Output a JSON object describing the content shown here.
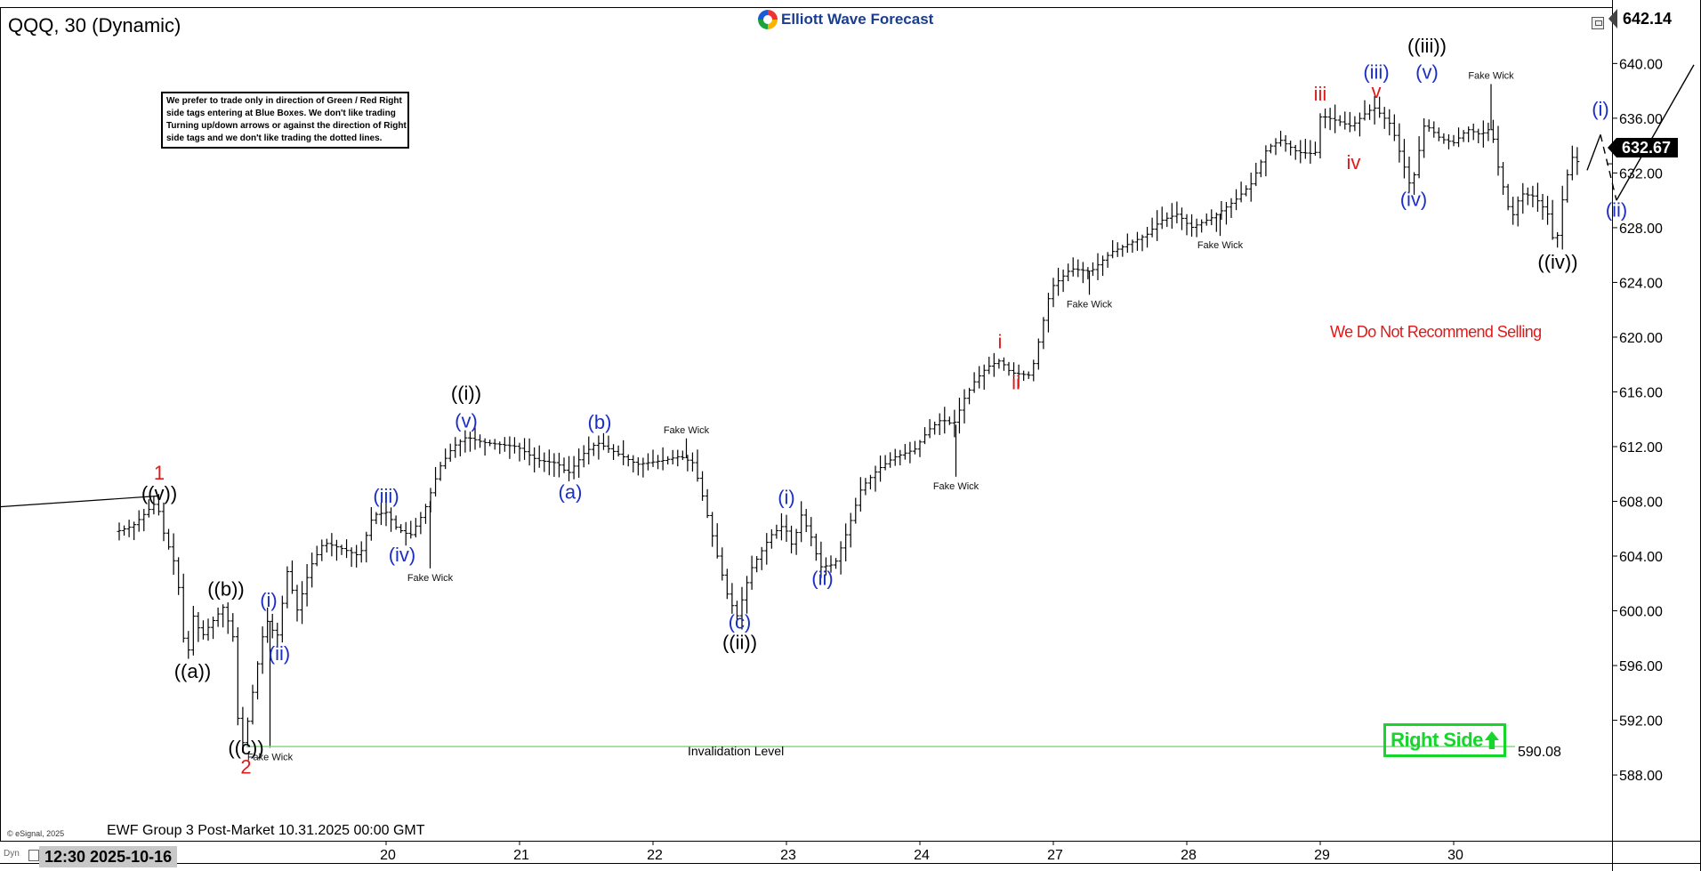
{
  "header": {
    "title": "QQQ, 30 (Dynamic)",
    "logo_text": "Elliott Wave Forecast"
  },
  "note": {
    "lines": [
      "We prefer to trade only in direction of Green / Red Right",
      "side tags entering at Blue Boxes. We don't like trading",
      "Turning up/down arrows or against the direction of Right",
      "side tags and we don't like trading the dotted lines."
    ]
  },
  "footer": {
    "caption": "EWF Group 3 Post-Market 10.31.2025 00:00 GMT",
    "copyright": "© eSignal, 2025",
    "start_label": "12:30 2025-10-16",
    "dyn_label": "Dyn"
  },
  "annotations": {
    "right_side": "Right Side",
    "no_sell": "We Do Not Recommend Selling",
    "invalidation_label": "Invalidation Level",
    "invalidation_value": "590.08"
  },
  "price_boxes": {
    "top": "642.14",
    "last": "632.67"
  },
  "colors": {
    "black_label": "#000000",
    "blue_label": "#1c2fc4",
    "red_label": "#e01a1a",
    "right_side_green": "#16d62b",
    "invalidation_line": "#7de07d"
  },
  "chart_data": {
    "type": "ohlc-bar",
    "ylim": [
      585.6,
      643.6
    ],
    "y_ticks": [
      588,
      592,
      596,
      600,
      604,
      608,
      612,
      616,
      620,
      624,
      628,
      632,
      636,
      640
    ],
    "y_tick_labels": [
      "588.00",
      "592.00",
      "596.00",
      "600.00",
      "604.00",
      "608.00",
      "612.00",
      "616.00",
      "620.00",
      "624.00",
      "628.00",
      "632.00",
      "636.00",
      "640.00"
    ],
    "x_axis_start": "2025-10-16 12:30",
    "x_ticks": [
      {
        "label": "20",
        "t": 2.0
      },
      {
        "label": "21",
        "t": 3.0
      },
      {
        "label": "22",
        "t": 4.0
      },
      {
        "label": "23",
        "t": 5.0
      },
      {
        "label": "24",
        "t": 6.0
      },
      {
        "label": "27",
        "t": 7.0
      },
      {
        "label": "28",
        "t": 8.0
      },
      {
        "label": "29",
        "t": 9.0
      },
      {
        "label": "30",
        "t": 10.0
      }
    ],
    "price_path": [
      [
        0.0,
        605.8
      ],
      [
        0.12,
        606.2
      ],
      [
        0.22,
        607.2
      ],
      [
        0.3,
        608.0
      ],
      [
        0.34,
        606.0
      ],
      [
        0.45,
        603.0
      ],
      [
        0.52,
        596.0
      ],
      [
        0.58,
        600.0
      ],
      [
        0.63,
        598.0
      ],
      [
        0.7,
        599.0
      ],
      [
        0.8,
        600.3
      ],
      [
        0.88,
        597.8
      ],
      [
        0.9,
        592.5
      ],
      [
        0.95,
        590.1
      ],
      [
        1.0,
        593.0
      ],
      [
        1.08,
        597.5
      ],
      [
        1.12,
        599.4
      ],
      [
        1.2,
        598.0
      ],
      [
        1.28,
        603.0
      ],
      [
        1.35,
        600.0
      ],
      [
        1.45,
        603.2
      ],
      [
        1.55,
        605.0
      ],
      [
        1.7,
        604.5
      ],
      [
        1.82,
        604.0
      ],
      [
        1.92,
        607.0
      ],
      [
        2.02,
        607.2
      ],
      [
        2.1,
        606.0
      ],
      [
        2.2,
        605.5
      ],
      [
        2.3,
        607.2
      ],
      [
        2.42,
        610.5
      ],
      [
        2.52,
        612.0
      ],
      [
        2.62,
        612.7
      ],
      [
        2.75,
        612.3
      ],
      [
        3.0,
        612.0
      ],
      [
        3.15,
        611.0
      ],
      [
        3.3,
        610.8
      ],
      [
        3.38,
        610.0
      ],
      [
        3.5,
        611.5
      ],
      [
        3.6,
        612.3
      ],
      [
        3.75,
        611.5
      ],
      [
        3.9,
        610.7
      ],
      [
        4.1,
        611.0
      ],
      [
        4.22,
        611.3
      ],
      [
        4.32,
        610.8
      ],
      [
        4.4,
        608.0
      ],
      [
        4.5,
        604.0
      ],
      [
        4.58,
        601.0
      ],
      [
        4.65,
        599.6
      ],
      [
        4.75,
        603.0
      ],
      [
        4.9,
        605.5
      ],
      [
        5.0,
        606.3
      ],
      [
        5.07,
        604.5
      ],
      [
        5.12,
        607.2
      ],
      [
        5.2,
        605.5
      ],
      [
        5.27,
        603.2
      ],
      [
        5.38,
        603.4
      ],
      [
        5.48,
        606.0
      ],
      [
        5.58,
        609.0
      ],
      [
        5.7,
        610.3
      ],
      [
        5.82,
        611.2
      ],
      [
        5.98,
        611.8
      ],
      [
        6.08,
        613.2
      ],
      [
        6.18,
        614.0
      ],
      [
        6.27,
        613.6
      ],
      [
        6.35,
        615.5
      ],
      [
        6.43,
        616.8
      ],
      [
        6.52,
        617.8
      ],
      [
        6.62,
        618.3
      ],
      [
        6.7,
        617.4
      ],
      [
        6.85,
        617.2
      ],
      [
        7.0,
        623.6
      ],
      [
        7.15,
        625.0
      ],
      [
        7.3,
        624.8
      ],
      [
        7.45,
        626.2
      ],
      [
        7.58,
        626.8
      ],
      [
        7.72,
        627.5
      ],
      [
        7.82,
        628.5
      ],
      [
        7.95,
        629.0
      ],
      [
        8.05,
        628.0
      ],
      [
        8.22,
        628.8
      ],
      [
        8.38,
        630.0
      ],
      [
        8.5,
        631.2
      ],
      [
        8.62,
        633.8
      ],
      [
        8.72,
        634.4
      ],
      [
        8.85,
        633.5
      ],
      [
        8.98,
        633.4
      ],
      [
        9.02,
        636.2
      ],
      [
        9.15,
        635.8
      ],
      [
        9.25,
        635.4
      ],
      [
        9.35,
        636.3
      ],
      [
        9.42,
        636.8
      ],
      [
        9.55,
        635.5
      ],
      [
        9.7,
        630.8
      ],
      [
        9.8,
        635.6
      ],
      [
        9.92,
        634.5
      ],
      [
        10.02,
        634.2
      ],
      [
        10.12,
        635.2
      ],
      [
        10.22,
        634.8
      ],
      [
        10.3,
        635.3
      ],
      [
        10.35,
        632.5
      ],
      [
        10.45,
        628.6
      ],
      [
        10.52,
        630.5
      ],
      [
        10.62,
        630.3
      ],
      [
        10.72,
        629.1
      ],
      [
        10.78,
        626.3
      ],
      [
        10.84,
        630.5
      ],
      [
        10.9,
        633.2
      ],
      [
        10.96,
        632.7
      ]
    ],
    "projection": [
      [
        11.0,
        632.2
      ],
      [
        11.1,
        634.8
      ],
      [
        11.22,
        630.0
      ],
      [
        11.8,
        639.9
      ]
    ],
    "last_price": 632.67,
    "invalidation_level": 590.08,
    "wave_labels": [
      {
        "text": "1",
        "t": 0.3,
        "p": 609.6,
        "color": "red"
      },
      {
        "text": "((v))",
        "t": 0.3,
        "p": 608.1,
        "color": "black"
      },
      {
        "text": "((a))",
        "t": 0.55,
        "p": 595.1,
        "color": "black"
      },
      {
        "text": "((b))",
        "t": 0.8,
        "p": 601.1,
        "color": "black"
      },
      {
        "text": "((c))",
        "t": 0.95,
        "p": 589.5,
        "color": "black"
      },
      {
        "text": "2",
        "t": 0.95,
        "p": 588.1,
        "color": "red"
      },
      {
        "text": "(i)",
        "t": 1.12,
        "p": 600.3,
        "color": "blue"
      },
      {
        "text": "(ii)",
        "t": 1.2,
        "p": 596.4,
        "color": "blue"
      },
      {
        "text": "(iii)",
        "t": 2.0,
        "p": 607.9,
        "color": "blue"
      },
      {
        "text": "(iv)",
        "t": 2.12,
        "p": 603.6,
        "color": "blue"
      },
      {
        "text": "((i))",
        "t": 2.6,
        "p": 615.4,
        "color": "black"
      },
      {
        "text": "(v)",
        "t": 2.6,
        "p": 613.4,
        "color": "blue"
      },
      {
        "text": "(a)",
        "t": 3.38,
        "p": 608.2,
        "color": "blue"
      },
      {
        "text": "(b)",
        "t": 3.6,
        "p": 613.3,
        "color": "blue"
      },
      {
        "text": "(c)",
        "t": 4.65,
        "p": 598.7,
        "color": "blue"
      },
      {
        "text": "((ii))",
        "t": 4.65,
        "p": 597.2,
        "color": "black"
      },
      {
        "text": "(i)",
        "t": 5.0,
        "p": 607.8,
        "color": "blue"
      },
      {
        "text": "(ii)",
        "t": 5.27,
        "p": 601.9,
        "color": "blue"
      },
      {
        "text": "i",
        "t": 6.6,
        "p": 619.2,
        "color": "red"
      },
      {
        "text": "ii",
        "t": 6.72,
        "p": 616.2,
        "color": "red"
      },
      {
        "text": "iii",
        "t": 9.0,
        "p": 637.3,
        "color": "red"
      },
      {
        "text": "iv",
        "t": 9.25,
        "p": 632.3,
        "color": "red"
      },
      {
        "text": "v",
        "t": 9.42,
        "p": 637.5,
        "color": "red"
      },
      {
        "text": "(iii)",
        "t": 9.42,
        "p": 638.9,
        "color": "blue"
      },
      {
        "text": "((iii))",
        "t": 9.8,
        "p": 640.8,
        "color": "black"
      },
      {
        "text": "(v)",
        "t": 9.8,
        "p": 638.9,
        "color": "blue"
      },
      {
        "text": "(iv)",
        "t": 9.7,
        "p": 629.6,
        "color": "blue"
      },
      {
        "text": "((iv))",
        "t": 10.78,
        "p": 625.0,
        "color": "black"
      },
      {
        "text": "(i)",
        "t": 11.1,
        "p": 636.2,
        "color": "blue"
      },
      {
        "text": "(ii)",
        "t": 11.22,
        "p": 628.8,
        "color": "blue"
      }
    ],
    "fake_wick_labels": [
      {
        "text": "Fake Wick",
        "t": 1.13,
        "p": 590.0
      },
      {
        "text": "Fake Wick",
        "t": 2.33,
        "p": 603.1
      },
      {
        "text": "Fake Wick",
        "t": 4.25,
        "p": 612.6
      },
      {
        "text": "Fake Wick",
        "t": 6.27,
        "p": 609.8
      },
      {
        "text": "Fake Wick",
        "t": 7.27,
        "p": 623.1
      },
      {
        "text": "Fake Wick",
        "t": 8.25,
        "p": 627.4
      },
      {
        "text": "Fake Wick",
        "t": 10.28,
        "p": 638.5
      }
    ]
  }
}
